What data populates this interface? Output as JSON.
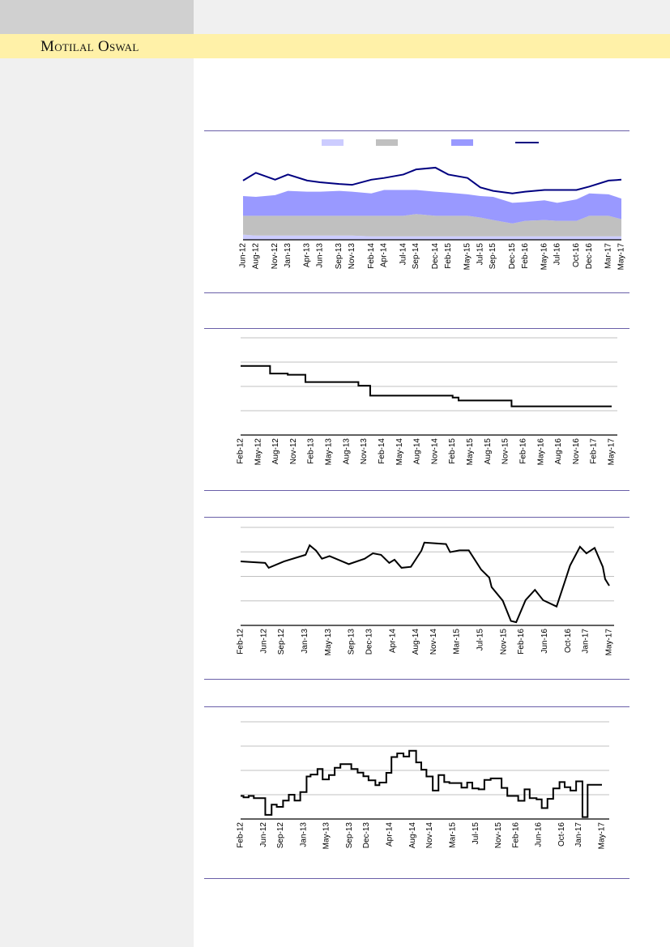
{
  "header": {
    "brand": "Motilal Oswal"
  },
  "colors": {
    "rule": "#6a5fa8",
    "band": "#fff1a8",
    "sidebar": "#f0f0f0"
  },
  "chart_data": [
    {
      "type": "area",
      "title": "",
      "stacked": true,
      "x_unit": "months since Jun-12",
      "x_ticks": [
        "Jun-12",
        "Aug-12",
        "Nov-12",
        "Jan-13",
        "Apr-13",
        "Jun-13",
        "Sep-13",
        "Nov-13",
        "Feb-14",
        "Apr-14",
        "Jul-14",
        "Sep-14",
        "Dec-14",
        "Feb-15",
        "May-15",
        "Jul-15",
        "Sep-15",
        "Dec-15",
        "Feb-16",
        "May-16",
        "Jul-16",
        "Oct-16",
        "Dec-16",
        "Mar-17",
        "May-17"
      ],
      "ylim": [
        0,
        100
      ],
      "grid": false,
      "legend": {
        "placement": "top-center",
        "entries": [
          {
            "name": "",
            "color": "#ccccff",
            "kind": "area"
          },
          {
            "name": "",
            "color": "#c0c0c0",
            "kind": "area"
          },
          {
            "name": "",
            "color": "#9999ff",
            "kind": "area"
          },
          {
            "name": "",
            "color": "#000080",
            "kind": "line"
          }
        ]
      },
      "series": [
        {
          "name": "series-1",
          "kind": "area",
          "color": "#ccccff",
          "values": [
            6,
            5,
            5,
            5,
            5,
            5,
            5,
            5,
            4,
            4,
            4,
            4,
            4,
            4,
            4,
            4,
            4,
            4,
            4,
            4,
            4,
            4,
            4,
            4,
            4
          ]
        },
        {
          "name": "series-2",
          "kind": "area",
          "color": "#c0c0c0",
          "values": [
            22,
            23,
            23,
            23,
            23,
            23,
            23,
            23,
            24,
            24,
            24,
            26,
            24,
            24,
            24,
            22,
            19,
            15,
            18,
            19,
            18,
            18,
            24,
            24,
            20
          ]
        },
        {
          "name": "series-3",
          "kind": "area",
          "color": "#9999ff",
          "values": [
            23,
            22,
            24,
            29,
            28,
            28,
            29,
            28,
            26,
            30,
            30,
            28,
            28,
            27,
            25,
            25,
            27,
            24,
            22,
            23,
            21,
            25,
            26,
            25,
            24
          ]
        },
        {
          "name": "series-4",
          "kind": "line",
          "color": "#000080",
          "values": [
            69,
            78,
            70,
            76,
            69,
            67,
            65,
            64,
            70,
            72,
            76,
            82,
            84,
            76,
            72,
            61,
            57,
            54,
            56,
            58,
            58,
            58,
            62,
            69,
            70
          ]
        }
      ]
    },
    {
      "type": "line",
      "step": true,
      "x_unit": "months since Feb-12",
      "x_ticks": [
        "Feb-12",
        "May-12",
        "Aug-12",
        "Nov-12",
        "Feb-13",
        "May-13",
        "Aug-13",
        "Nov-13",
        "Feb-14",
        "May-14",
        "Aug-14",
        "Nov-14",
        "Feb-15",
        "May-15",
        "Aug-15",
        "Nov-15",
        "Feb-16",
        "May-16",
        "Aug-16",
        "Nov-16",
        "Feb-17",
        "May-17"
      ],
      "ylim": [
        0,
        4
      ],
      "grid": true,
      "series": [
        {
          "name": "series-1",
          "color": "#000000",
          "points": [
            [
              0,
              2.84
            ],
            [
              5,
              2.53
            ],
            [
              8,
              2.48
            ],
            [
              11,
              2.18
            ],
            [
              20,
              2.03
            ],
            [
              22,
              1.62
            ],
            [
              36,
              1.54
            ],
            [
              37,
              1.42
            ],
            [
              46,
              1.18
            ],
            [
              63,
              1.18
            ]
          ]
        }
      ]
    },
    {
      "type": "line",
      "x_unit": "months since Feb-12",
      "x_ticks": [
        "Feb-12",
        "Jun-12",
        "Sep-12",
        "Jan-13",
        "May-13",
        "Sep-13",
        "Dec-13",
        "Apr-14",
        "Aug-14",
        "Nov-14",
        "Mar-15",
        "Jul-15",
        "Nov-15",
        "Feb-16",
        "Jun-16",
        "Oct-16",
        "Jan-17",
        "May-17"
      ],
      "ylim": [
        0,
        4
      ],
      "grid": true,
      "series": [
        {
          "name": "series-1",
          "color": "#000000",
          "points": [
            [
              0,
              2.61
            ],
            [
              4.2,
              2.55
            ],
            [
              4.8,
              2.35
            ],
            [
              7.4,
              2.61
            ],
            [
              11.1,
              2.88
            ],
            [
              11.8,
              3.27
            ],
            [
              12.9,
              3.05
            ],
            [
              13.9,
              2.72
            ],
            [
              15.2,
              2.83
            ],
            [
              18.5,
              2.5
            ],
            [
              21.2,
              2.72
            ],
            [
              22.6,
              2.94
            ],
            [
              24,
              2.88
            ],
            [
              25.4,
              2.55
            ],
            [
              26.3,
              2.68
            ],
            [
              27.5,
              2.35
            ],
            [
              29.1,
              2.39
            ],
            [
              30.9,
              3.05
            ],
            [
              31.4,
              3.38
            ],
            [
              35.1,
              3.32
            ],
            [
              35.8,
              2.99
            ],
            [
              37.4,
              3.06
            ],
            [
              39,
              3.06
            ],
            [
              41.1,
              2.28
            ],
            [
              42.5,
              1.95
            ],
            [
              42.9,
              1.56
            ],
            [
              44.8,
              1.01
            ],
            [
              46.2,
              0.18
            ],
            [
              47.1,
              0.13
            ],
            [
              48.7,
              1.03
            ],
            [
              50.3,
              1.45
            ],
            [
              51.7,
              1.03
            ],
            [
              54,
              0.77
            ],
            [
              55.4,
              1.78
            ],
            [
              56.3,
              2.44
            ],
            [
              58,
              3.21
            ],
            [
              59.1,
              2.94
            ],
            [
              60.5,
              3.16
            ],
            [
              61.9,
              2.39
            ],
            [
              62.3,
              1.89
            ],
            [
              63,
              1.62
            ]
          ]
        }
      ]
    },
    {
      "type": "line",
      "step": true,
      "x_unit": "months since Feb-12",
      "x_ticks": [
        "Feb-12",
        "Jun-12",
        "Sep-12",
        "Jan-13",
        "May-13",
        "Sep-13",
        "Dec-13",
        "Apr-14",
        "Aug-14",
        "Nov-14",
        "Mar-15",
        "Jul-15",
        "Nov-15",
        "Feb-16",
        "Jun-16",
        "Oct-16",
        "Jan-17",
        "May-17"
      ],
      "ylim": [
        0,
        4
      ],
      "grid": true,
      "series": [
        {
          "name": "series-1",
          "color": "#000000",
          "points": [
            [
              0,
              0.95
            ],
            [
              0.5,
              0.89
            ],
            [
              1.4,
              0.95
            ],
            [
              2.3,
              0.86
            ],
            [
              4.3,
              0.17
            ],
            [
              5.4,
              0.59
            ],
            [
              6.3,
              0.5
            ],
            [
              7.4,
              0.76
            ],
            [
              8.4,
              1.0
            ],
            [
              9.4,
              0.76
            ],
            [
              10.4,
              1.11
            ],
            [
              11.5,
              1.75
            ],
            [
              12.2,
              1.83
            ],
            [
              13.4,
              2.06
            ],
            [
              14.3,
              1.63
            ],
            [
              15.4,
              1.81
            ],
            [
              16.4,
              2.11
            ],
            [
              17.4,
              2.26
            ],
            [
              19.3,
              2.06
            ],
            [
              20.4,
              1.91
            ],
            [
              21.4,
              1.76
            ],
            [
              22.3,
              1.59
            ],
            [
              23.5,
              1.39
            ],
            [
              24.2,
              1.5
            ],
            [
              25.4,
              1.9
            ],
            [
              26.3,
              2.55
            ],
            [
              27.3,
              2.7
            ],
            [
              28.4,
              2.57
            ],
            [
              29.4,
              2.81
            ],
            [
              30.6,
              2.33
            ],
            [
              31.5,
              2.03
            ],
            [
              32.4,
              1.75
            ],
            [
              33.5,
              1.17
            ],
            [
              34.5,
              1.81
            ],
            [
              35.5,
              1.52
            ],
            [
              36.4,
              1.48
            ],
            [
              38.5,
              1.29
            ],
            [
              39.5,
              1.5
            ],
            [
              40.4,
              1.26
            ],
            [
              41.5,
              1.22
            ],
            [
              42.5,
              1.61
            ],
            [
              43.6,
              1.67
            ],
            [
              45.5,
              1.28
            ],
            [
              46.5,
              0.95
            ],
            [
              48.4,
              0.75
            ],
            [
              49.5,
              1.22
            ],
            [
              50.4,
              0.86
            ],
            [
              51.6,
              0.81
            ],
            [
              52.5,
              0.45
            ],
            [
              53.5,
              0.83
            ],
            [
              54.5,
              1.26
            ],
            [
              55.6,
              1.52
            ],
            [
              56.5,
              1.31
            ],
            [
              57.5,
              1.17
            ],
            [
              58.5,
              1.55
            ],
            [
              59.6,
              0.08
            ],
            [
              60.5,
              1.41
            ],
            [
              63,
              1.41
            ]
          ]
        }
      ]
    }
  ]
}
